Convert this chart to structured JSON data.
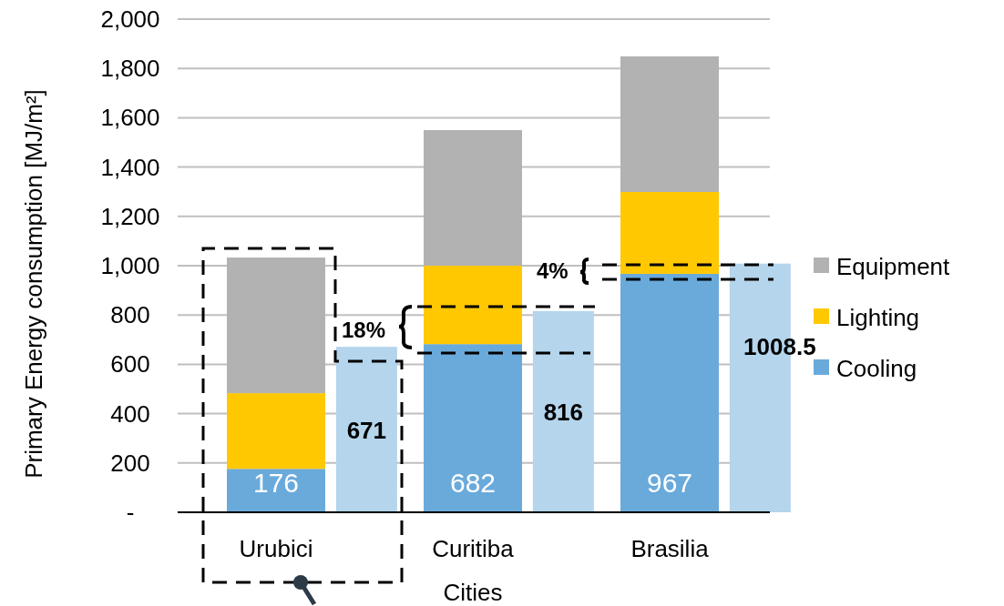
{
  "chart_data": {
    "type": "bar",
    "stacked": true,
    "xlabel": "Cities",
    "ylabel": "Primary Energy consumption [MJ/m²]",
    "categories": [
      "Urubici",
      null,
      "Curitiba",
      null,
      "Brasilia",
      null
    ],
    "series": [
      {
        "name": "Cooling",
        "color": "#6aaadb",
        "values": [
          176,
          null,
          682,
          null,
          967,
          null
        ],
        "value_labels": [
          "176",
          null,
          "682",
          null,
          "967",
          null
        ]
      },
      {
        "name": "Lighting",
        "color": "#ffc800",
        "values": [
          307,
          null,
          318,
          null,
          332,
          null
        ]
      },
      {
        "name": "Equipment",
        "color": "#b2b2b2",
        "values": [
          550,
          null,
          550,
          null,
          550,
          null
        ]
      },
      {
        "color": "#b4d5ec",
        "values": [
          null,
          671,
          null,
          816,
          null,
          1008.5
        ],
        "value_labels": [
          null,
          "671",
          null,
          "816",
          null,
          "1008.5"
        ]
      }
    ],
    "ylim": [
      0,
      2000
    ],
    "yticks": [
      {
        "value": 0,
        "label": "-"
      },
      {
        "value": 200,
        "label": "200"
      },
      {
        "value": 400,
        "label": "400"
      },
      {
        "value": 600,
        "label": "600"
      },
      {
        "value": 800,
        "label": "800"
      },
      {
        "value": 1000,
        "label": "1,000"
      },
      {
        "value": 1200,
        "label": "1,200"
      },
      {
        "value": 1400,
        "label": "1,400"
      },
      {
        "value": 1600,
        "label": "1,600"
      },
      {
        "value": 1800,
        "label": "1,800"
      },
      {
        "value": 2000,
        "label": "2,000"
      }
    ],
    "grid": "y",
    "legend": "right",
    "annotations": [
      "18%",
      "4%"
    ]
  }
}
